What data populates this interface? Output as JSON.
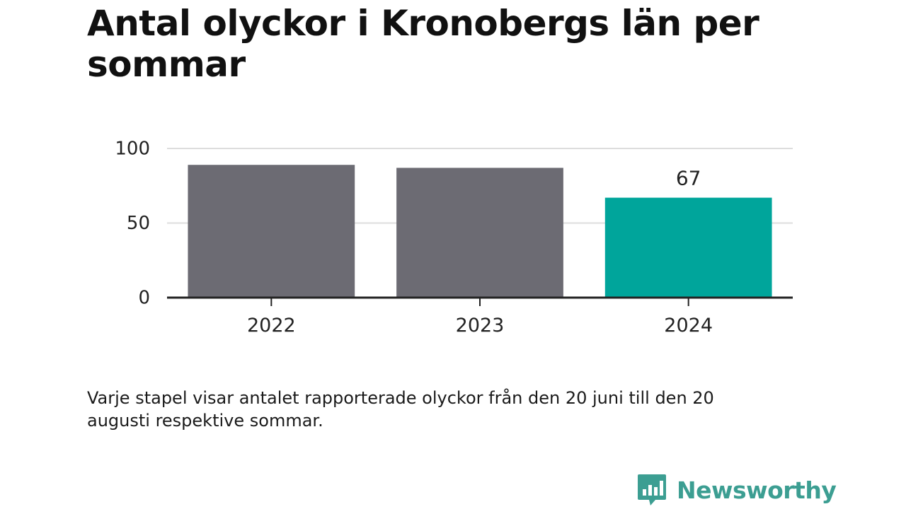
{
  "title": "Antal olyckor i Kronobergs län per sommar",
  "caption": "Varje stapel visar antalet rapporterade olyckor från den 20 juni till den 20 augusti respektive sommar.",
  "brand": {
    "name": "Newsworthy",
    "color": "#3c9e92",
    "icon": "bar-chart-speech-bubble-icon"
  },
  "colors": {
    "bar_default": "#6c6b73",
    "bar_highlight": "#00a59b",
    "grid": "#dddddd",
    "axis": "#222222",
    "text": "#222222"
  },
  "chart_data": {
    "type": "bar",
    "categories": [
      "2022",
      "2023",
      "2024"
    ],
    "values": [
      89,
      87,
      67
    ],
    "highlight_index": 2,
    "data_labels": [
      null,
      null,
      "67"
    ],
    "yticks": [
      "0",
      "50",
      "100"
    ],
    "ylim": [
      0,
      100
    ],
    "grid": true,
    "xlabel": "",
    "ylabel": ""
  }
}
